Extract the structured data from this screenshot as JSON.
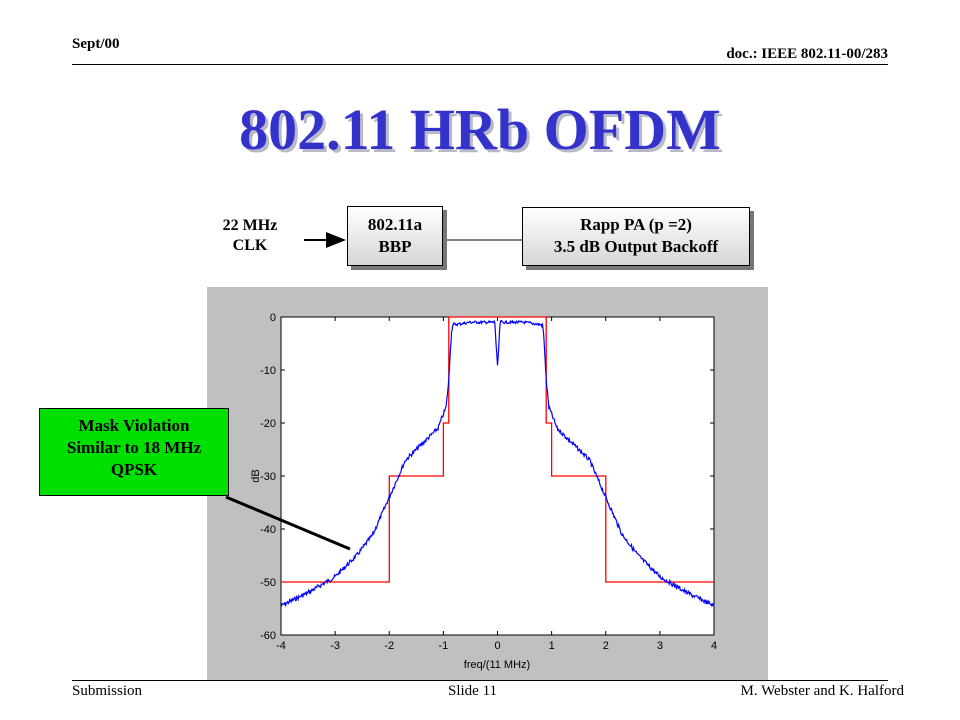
{
  "header": {
    "date": "Sept/00",
    "doc": "doc.: IEEE 802.11-00/283"
  },
  "title": "802.11 HRb OFDM",
  "diagram": {
    "clk_line1": "22 MHz",
    "clk_line2": "CLK",
    "bbp_line1": "802.11a",
    "bbp_line2": "BBP",
    "pa_line1": "Rapp PA (p =2)",
    "pa_line2": "3.5 dB Output Backoff"
  },
  "callout": {
    "line1": "Mask Violation",
    "line2": "Similar to 18 MHz",
    "line3": "QPSK"
  },
  "chart_data": {
    "type": "line",
    "title": "",
    "xlabel": "freq/(11 MHz)",
    "ylabel": "dB",
    "xlim": [
      -4,
      4
    ],
    "ylim": [
      -60,
      0
    ],
    "xticks": [
      "-4",
      "-3",
      "-2",
      "-1",
      "0",
      "1",
      "2",
      "3",
      "4"
    ],
    "yticks": [
      "0",
      "-10",
      "-20",
      "-30",
      "-40",
      "-50",
      "-60"
    ],
    "grid": false,
    "series": [
      {
        "color": "#ff0000",
        "x": [
          -4,
          -2,
          -2,
          -1,
          -1,
          -0.9,
          -0.9,
          0.9,
          0.9,
          1,
          1,
          2,
          2,
          4
        ],
        "y": [
          -50,
          -50,
          -30,
          -30,
          -20,
          -20,
          0,
          0,
          -20,
          -20,
          -30,
          -30,
          -50,
          -50
        ]
      },
      {
        "color": "#0000ff",
        "x": [
          -4,
          -3.5,
          -3,
          -2.6,
          -2.3,
          -2,
          -1.7,
          -1.4,
          -1.1,
          -0.95,
          -0.9,
          -0.87,
          -0.85,
          -0.83,
          -0.5,
          -0.05,
          0,
          0.05,
          0.5,
          0.83,
          0.85,
          0.87,
          0.9,
          0.95,
          1.1,
          1.4,
          1.7,
          2,
          2.3,
          2.6,
          3,
          3.5,
          4
        ],
        "y": [
          -54.5,
          -52,
          -49,
          -45,
          -41,
          -34,
          -27,
          -24,
          -21,
          -17,
          -12,
          -6,
          -3,
          -1.5,
          -1,
          -1,
          -9.5,
          -1,
          -1,
          -1.5,
          -3,
          -6,
          -12,
          -17,
          -21,
          -24,
          -27,
          -34,
          -41,
          -45,
          -49,
          -52,
          -54.5
        ]
      }
    ]
  },
  "footer": {
    "left": "Submission",
    "center": "Slide 11",
    "right": "M. Webster and K. Halford"
  }
}
